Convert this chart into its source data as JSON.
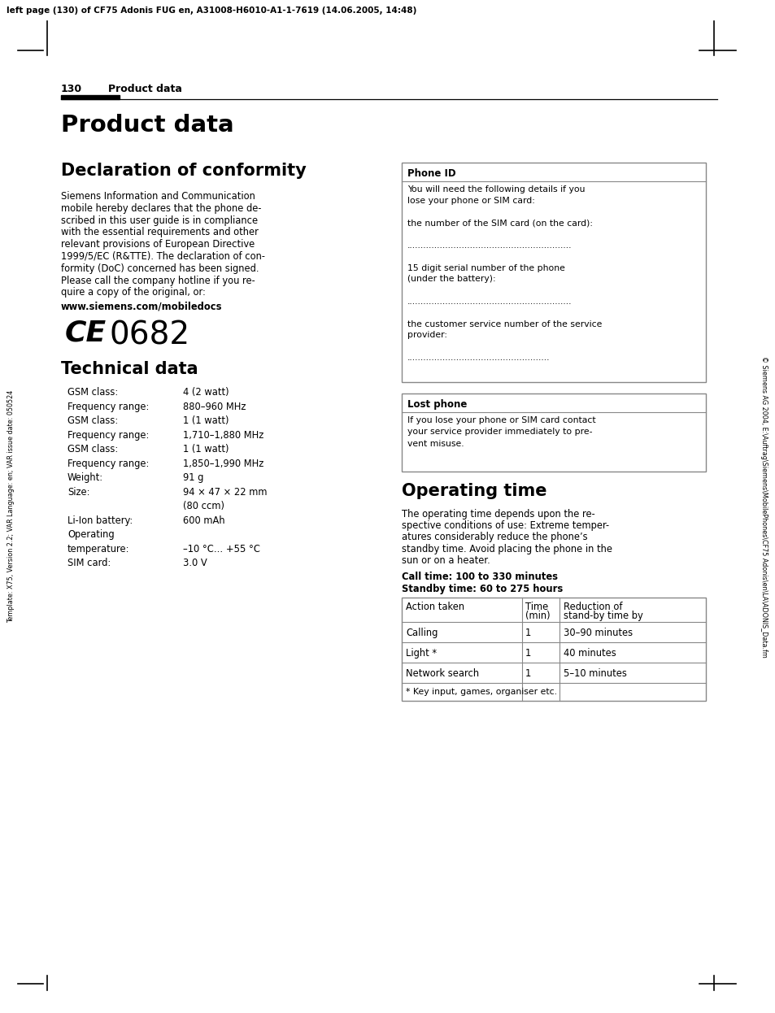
{
  "page_header": "left page (130) of CF75 Adonis FUG en, A31008-H6010-A1-1-7619 (14.06.2005, 14:48)",
  "left_sidebar": "Template: X75, Version 2.2; VAR Language: en; VAR issue date: 050524",
  "right_sidebar": "© Siemens AG 2004, E:\\Auftrag\\Siemens\\MobilePhones\\CF75 Adonis\\en\\LA\\ADONIS_Data.fm",
  "page_num": "130",
  "section_header": "Product data",
  "main_title": "Product data",
  "decl_title": "Declaration of conformity",
  "decl_lines": [
    "Siemens Information and Communication",
    "mobile hereby declares that the phone de-",
    "scribed in this user guide is in compliance",
    "with the essential requirements and other",
    "relevant provisions of European Directive",
    "1999/5/EC (R&TTE). The declaration of con-",
    "formity (DoC) concerned has been signed.",
    "Please call the company hotline if you re-",
    "quire a copy of the original, or:"
  ],
  "decl_url": "www.siemens.com/mobiledocs",
  "ce_number": "0682",
  "tech_title": "Technical data",
  "tech_rows": [
    [
      "GSM class:",
      "4 (2 watt)"
    ],
    [
      "Frequency range:",
      "880–960 MHz"
    ],
    [
      "GSM class:",
      "1 (1 watt)"
    ],
    [
      "Frequency range:",
      "1,710–1,880 MHz"
    ],
    [
      "GSM class:",
      "1 (1 watt)"
    ],
    [
      "Frequency range:",
      "1,850–1,990 MHz"
    ],
    [
      "Weight:",
      "91 g"
    ],
    [
      "Size:",
      "94 × 47 × 22 mm"
    ],
    [
      "",
      "(80 ccm)"
    ],
    [
      "Li-Ion battery:",
      "600 mAh"
    ],
    [
      "Operating",
      ""
    ],
    [
      "temperature:",
      "–10 °C… +55 °C"
    ],
    [
      "SIM card:",
      "3.0 V"
    ]
  ],
  "phone_id_title": "Phone ID",
  "phone_id_lines": [
    "You will need the following details if you",
    "lose your phone or SIM card:",
    "",
    "the number of the SIM card (on the card):",
    "",
    "............................................................",
    "",
    "15 digit serial number of the phone",
    "(under the battery):",
    "",
    "............................................................",
    "",
    "the customer service number of the service",
    "provider:",
    "",
    "...................................................."
  ],
  "lost_title": "Lost phone",
  "lost_lines": [
    "If you lose your phone or SIM card contact",
    "your service provider immediately to pre-",
    "vent misuse."
  ],
  "op_title": "Operating time",
  "op_lines": [
    "The operating time depends upon the re-",
    "spective conditions of use: Extreme temper-",
    "atures considerably reduce the phone’s",
    "standby time. Avoid placing the phone in the",
    "sun or on a heater."
  ],
  "call_bold1": "Call time: 100 to 330 minutes",
  "call_bold2": "Standby time: 60 to 275 hours",
  "tbl_headers": [
    "Action taken",
    "Time\n(min)",
    "Reduction of\nstand-by time by"
  ],
  "tbl_rows": [
    [
      "Calling",
      "1",
      "30–90 minutes"
    ],
    [
      "Light *",
      "1",
      "40 minutes"
    ],
    [
      "Network search",
      "1",
      "5–10 minutes"
    ]
  ],
  "tbl_footnote": "* Key input, games, organiser etc.",
  "ML": 75,
  "MR": 882,
  "C2": 494,
  "bg": "#ffffff",
  "black": "#000000",
  "gray": "#888888"
}
